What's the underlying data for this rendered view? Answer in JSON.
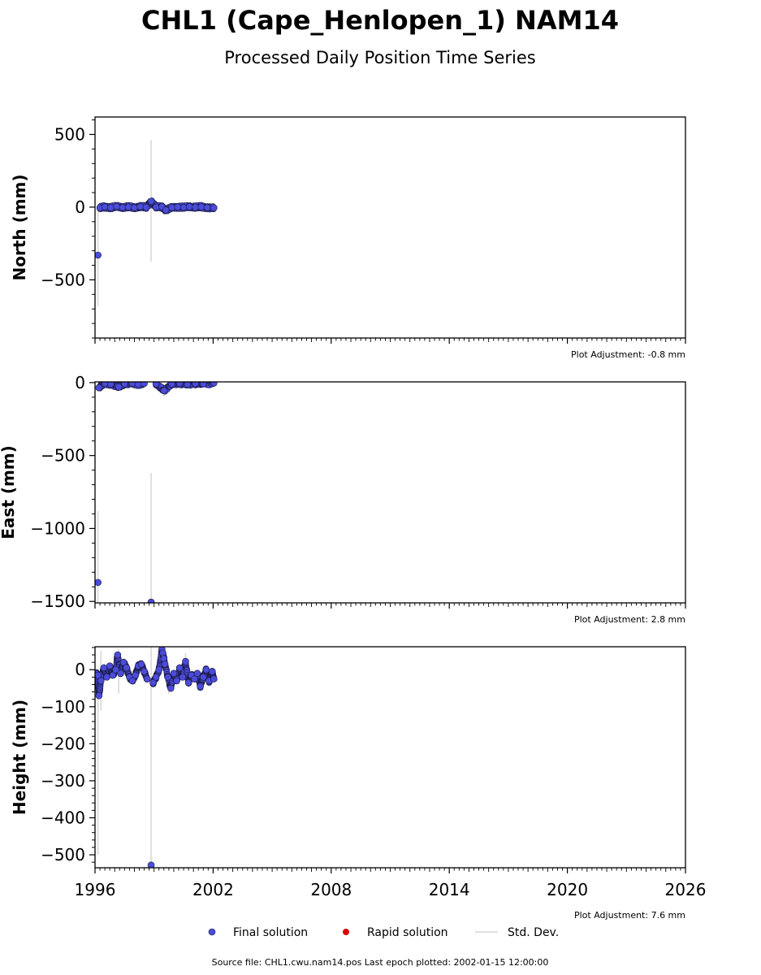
{
  "title": "CHL1 (Cape_Henlopen_1) NAM14",
  "subtitle": "Processed Daily Position Time Series",
  "footer": "Source file: CHL1.cwu.nam14.pos  Last epoch plotted: 2002-01-15 12:00:00",
  "legend": {
    "final": "Final solution",
    "rapid": "Rapid solution",
    "std": "Std. Dev."
  },
  "colors": {
    "final": "#4b4bdb",
    "final_edge": "#1a1a40",
    "rapid": "#dd0000",
    "std": "#d3d3d3"
  },
  "chart_data": [
    {
      "type": "scatter",
      "ylabel": "North (mm)",
      "adjustment": "Plot Adjustment: -0.8 mm",
      "xlim": [
        1996,
        2026
      ],
      "ylim": [
        -900,
        620
      ],
      "yticks": [
        500,
        0,
        -500
      ],
      "yminor": 100,
      "points": [
        {
          "x": 1996.15,
          "y": -330
        },
        {
          "x": 1996.25,
          "y": -5
        },
        {
          "x": 1996.5,
          "y": 2
        },
        {
          "x": 1996.8,
          "y": -3
        },
        {
          "x": 1997.1,
          "y": 4
        },
        {
          "x": 1997.4,
          "y": -2
        },
        {
          "x": 1997.7,
          "y": 1
        },
        {
          "x": 1998.0,
          "y": -4
        },
        {
          "x": 1998.3,
          "y": 3
        },
        {
          "x": 1998.6,
          "y": -1
        },
        {
          "x": 1998.85,
          "y": 40
        },
        {
          "x": 1999.1,
          "y": 0
        },
        {
          "x": 1999.4,
          "y": 2
        },
        {
          "x": 1999.6,
          "y": -20
        },
        {
          "x": 1999.9,
          "y": -3
        },
        {
          "x": 2000.2,
          "y": 1
        },
        {
          "x": 2000.5,
          "y": -2
        },
        {
          "x": 2000.8,
          "y": 3
        },
        {
          "x": 2001.1,
          "y": -1
        },
        {
          "x": 2001.4,
          "y": 2
        },
        {
          "x": 2001.7,
          "y": -4
        },
        {
          "x": 2002.04,
          "y": -5
        }
      ],
      "errorbars": [
        {
          "x": 1996.15,
          "low": -680,
          "high": 20
        },
        {
          "x": 1998.85,
          "low": -375,
          "high": 460
        }
      ]
    },
    {
      "type": "scatter",
      "ylabel": "East (mm)",
      "adjustment": "Plot Adjustment: 2.8 mm",
      "xlim": [
        1996,
        2026
      ],
      "ylim": [
        -1510,
        5
      ],
      "yticks": [
        0,
        -500,
        -1000,
        -1500
      ],
      "yminor": 100,
      "points": [
        {
          "x": 1996.15,
          "y": -1370
        },
        {
          "x": 1996.2,
          "y": -35
        },
        {
          "x": 1996.5,
          "y": -5
        },
        {
          "x": 1996.8,
          "y": -10
        },
        {
          "x": 1997.2,
          "y": -30
        },
        {
          "x": 1997.5,
          "y": -8
        },
        {
          "x": 1997.9,
          "y": -5
        },
        {
          "x": 1998.2,
          "y": -12
        },
        {
          "x": 1998.5,
          "y": -6
        },
        {
          "x": 1998.85,
          "y": -1505
        },
        {
          "x": 1999.1,
          "y": -8
        },
        {
          "x": 1999.5,
          "y": -55
        },
        {
          "x": 1999.9,
          "y": -10
        },
        {
          "x": 2000.3,
          "y": -5
        },
        {
          "x": 2000.7,
          "y": -12
        },
        {
          "x": 2001.1,
          "y": -6
        },
        {
          "x": 2001.5,
          "y": -9
        },
        {
          "x": 2002.04,
          "y": -3
        }
      ],
      "errorbars": [
        {
          "x": 1996.15,
          "low": -1505,
          "high": -880
        },
        {
          "x": 1998.85,
          "low": -1505,
          "high": -620
        },
        {
          "x": 1999.5,
          "low": -95,
          "high": -15
        }
      ]
    },
    {
      "type": "scatter",
      "ylabel": "Height (mm)",
      "adjustment": "Plot Adjustment: 7.6 mm",
      "xlim": [
        1996,
        2026
      ],
      "ylim": [
        -535,
        62
      ],
      "yticks": [
        0,
        -100,
        -200,
        -300,
        -400,
        -500
      ],
      "yminor": 20,
      "xticks": [
        1996,
        2002,
        2008,
        2014,
        2020,
        2026
      ],
      "points": [
        {
          "x": 1996.05,
          "y": -10
        },
        {
          "x": 1996.15,
          "y": -15
        },
        {
          "x": 1996.2,
          "y": -70
        },
        {
          "x": 1996.3,
          "y": -30
        },
        {
          "x": 1996.45,
          "y": 5
        },
        {
          "x": 1996.6,
          "y": -20
        },
        {
          "x": 1996.75,
          "y": 10
        },
        {
          "x": 1996.9,
          "y": -15
        },
        {
          "x": 1997.05,
          "y": 0
        },
        {
          "x": 1997.15,
          "y": 40
        },
        {
          "x": 1997.3,
          "y": -10
        },
        {
          "x": 1997.45,
          "y": 20
        },
        {
          "x": 1997.6,
          "y": 5
        },
        {
          "x": 1997.75,
          "y": -20
        },
        {
          "x": 1997.9,
          "y": -30
        },
        {
          "x": 1998.05,
          "y": -15
        },
        {
          "x": 1998.2,
          "y": 10
        },
        {
          "x": 1998.35,
          "y": 15
        },
        {
          "x": 1998.5,
          "y": -5
        },
        {
          "x": 1998.65,
          "y": -25
        },
        {
          "x": 1998.85,
          "y": -528
        },
        {
          "x": 1998.95,
          "y": -35
        },
        {
          "x": 1999.1,
          "y": -20
        },
        {
          "x": 1999.25,
          "y": 0
        },
        {
          "x": 1999.4,
          "y": 55
        },
        {
          "x": 1999.45,
          "y": 45
        },
        {
          "x": 1999.5,
          "y": 30
        },
        {
          "x": 1999.55,
          "y": 15
        },
        {
          "x": 1999.7,
          "y": -20
        },
        {
          "x": 1999.85,
          "y": -50
        },
        {
          "x": 2000.0,
          "y": -10
        },
        {
          "x": 2000.15,
          "y": -30
        },
        {
          "x": 2000.3,
          "y": 5
        },
        {
          "x": 2000.45,
          "y": -20
        },
        {
          "x": 2000.6,
          "y": 22
        },
        {
          "x": 2000.75,
          "y": -35
        },
        {
          "x": 2000.9,
          "y": -15
        },
        {
          "x": 2001.05,
          "y": -25
        },
        {
          "x": 2001.2,
          "y": -10
        },
        {
          "x": 2001.35,
          "y": -45
        },
        {
          "x": 2001.5,
          "y": -20
        },
        {
          "x": 2001.65,
          "y": 0
        },
        {
          "x": 2001.8,
          "y": -30
        },
        {
          "x": 2001.95,
          "y": -5
        },
        {
          "x": 2002.04,
          "y": -25
        }
      ],
      "errorbars": [
        {
          "x": 1996.15,
          "low": -500,
          "high": -30
        },
        {
          "x": 1996.3,
          "low": -110,
          "high": 50
        },
        {
          "x": 1997.2,
          "low": -65,
          "high": 55
        },
        {
          "x": 1998.85,
          "low": -535,
          "high": 62
        },
        {
          "x": 1999.75,
          "low": -65,
          "high": 10
        },
        {
          "x": 2000.6,
          "low": -15,
          "high": 45
        }
      ]
    }
  ]
}
